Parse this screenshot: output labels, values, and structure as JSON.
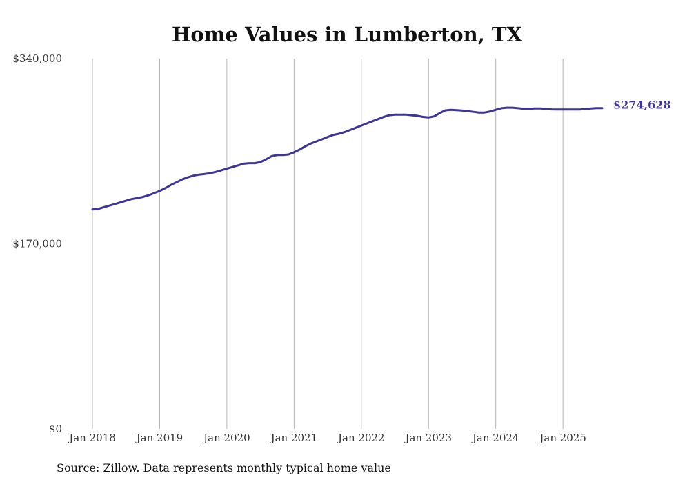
{
  "chart_data": {
    "type": "line",
    "title": "Home Values in Lumberton, TX",
    "xlabel": "",
    "ylabel": "",
    "ylim": [
      0,
      340000
    ],
    "yticks": [
      {
        "value": 0,
        "label": "$0"
      },
      {
        "value": 170000,
        "label": "$170,000"
      },
      {
        "value": 340000,
        "label": "$340,000"
      }
    ],
    "xlim": [
      "2018-01",
      "2025-08"
    ],
    "xticks": [
      {
        "value": "2018-01",
        "label": "Jan 2018"
      },
      {
        "value": "2019-01",
        "label": "Jan 2019"
      },
      {
        "value": "2020-01",
        "label": "Jan 2020"
      },
      {
        "value": "2021-01",
        "label": "Jan 2021"
      },
      {
        "value": "2022-01",
        "label": "Jan 2022"
      },
      {
        "value": "2023-01",
        "label": "Jan 2023"
      },
      {
        "value": "2024-01",
        "label": "Jan 2024"
      },
      {
        "value": "2025-01",
        "label": "Jan 2025"
      }
    ],
    "grid": "vertical",
    "legend": "none",
    "series": [
      {
        "color": "#3d3594",
        "end_label": "$274,628",
        "x": [
          "2018-01",
          "2018-02",
          "2018-03",
          "2018-04",
          "2018-05",
          "2018-06",
          "2018-07",
          "2018-08",
          "2018-09",
          "2018-10",
          "2018-11",
          "2018-12",
          "2019-01",
          "2019-02",
          "2019-03",
          "2019-04",
          "2019-05",
          "2019-06",
          "2019-07",
          "2019-08",
          "2019-09",
          "2019-10",
          "2019-11",
          "2019-12",
          "2020-01",
          "2020-02",
          "2020-03",
          "2020-04",
          "2020-05",
          "2020-06",
          "2020-07",
          "2020-08",
          "2020-09",
          "2020-10",
          "2020-11",
          "2020-12",
          "2021-01",
          "2021-02",
          "2021-03",
          "2021-04",
          "2021-05",
          "2021-06",
          "2021-07",
          "2021-08",
          "2021-09",
          "2021-10",
          "2021-11",
          "2021-12",
          "2022-01",
          "2022-02",
          "2022-03",
          "2022-04",
          "2022-05",
          "2022-06",
          "2022-07",
          "2022-08",
          "2022-09",
          "2022-10",
          "2022-11",
          "2022-12",
          "2023-01",
          "2023-02",
          "2023-03",
          "2023-04",
          "2023-05",
          "2023-06",
          "2023-07",
          "2023-08",
          "2023-09",
          "2023-10",
          "2023-11",
          "2023-12",
          "2024-01",
          "2024-02",
          "2024-03",
          "2024-04",
          "2024-05",
          "2024-06",
          "2024-07",
          "2024-08",
          "2024-09",
          "2024-10",
          "2024-11",
          "2024-12",
          "2025-01",
          "2025-02",
          "2025-03",
          "2025-04",
          "2025-05",
          "2025-06",
          "2025-07",
          "2025-08"
        ],
        "values": [
          201500,
          202000,
          203500,
          205000,
          206500,
          208000,
          209500,
          211000,
          212000,
          213000,
          214500,
          216500,
          218500,
          221000,
          224000,
          226500,
          229000,
          231000,
          232500,
          233500,
          234000,
          234800,
          236000,
          237500,
          239000,
          240500,
          242000,
          243500,
          244000,
          244000,
          245000,
          247500,
          250500,
          251500,
          251500,
          252000,
          254000,
          256500,
          259500,
          262000,
          264000,
          266000,
          268000,
          270000,
          271000,
          272500,
          274500,
          276500,
          278500,
          280500,
          282500,
          284500,
          286500,
          288000,
          288500,
          288500,
          288500,
          288000,
          287500,
          286500,
          286000,
          287000,
          290000,
          292500,
          293000,
          292700,
          292300,
          291800,
          291100,
          290500,
          290500,
          291500,
          293000,
          294500,
          295000,
          295000,
          294500,
          294000,
          294000,
          294300,
          294300,
          293800,
          293400,
          293300,
          293300,
          293300,
          293300,
          293300,
          293700,
          294300,
          294600,
          274628
        ]
      }
    ]
  },
  "source_note": "Source: Zillow. Data represents monthly typical home value"
}
